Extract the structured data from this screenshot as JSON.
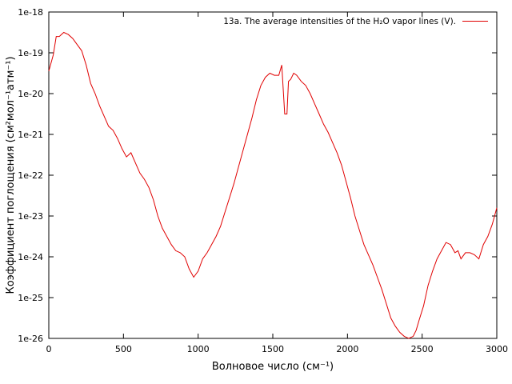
{
  "chart_data": {
    "type": "line",
    "xlabel": "Волновое число (см⁻¹)",
    "ylabel": "Коэффициент поглощения (см²мол⁻¹атм⁻¹)",
    "xlim": [
      0,
      3000
    ],
    "ylim_log10": [
      -26,
      -18
    ],
    "y_scale": "log",
    "x_ticks": [
      0,
      500,
      1000,
      1500,
      2000,
      2500,
      3000
    ],
    "x_tick_labels": [
      "0",
      "500",
      "1000",
      "1500",
      "2000",
      "2500",
      "3000"
    ],
    "y_ticks_log10": [
      -18,
      -19,
      -20,
      -21,
      -22,
      -23,
      -24,
      -25,
      -26
    ],
    "y_tick_labels": [
      "1e-18",
      "1e-19",
      "1e-20",
      "1e-21",
      "1e-22",
      "1e-23",
      "1e-24",
      "1e-25",
      "1e-26"
    ],
    "grid": false,
    "legend_position": "top-right",
    "series": [
      {
        "name": "13a. The average intensities of the H₂O vapor lines (V).",
        "color": "#e00000",
        "x": [
          0,
          30,
          50,
          70,
          100,
          130,
          160,
          190,
          220,
          250,
          280,
          310,
          340,
          370,
          400,
          430,
          460,
          490,
          520,
          550,
          580,
          610,
          640,
          670,
          700,
          730,
          760,
          790,
          820,
          850,
          880,
          910,
          940,
          970,
          1000,
          1030,
          1060,
          1090,
          1120,
          1150,
          1180,
          1210,
          1240,
          1270,
          1300,
          1330,
          1360,
          1390,
          1420,
          1450,
          1480,
          1510,
          1540,
          1560,
          1580,
          1595,
          1605,
          1620,
          1640,
          1660,
          1690,
          1720,
          1750,
          1780,
          1810,
          1840,
          1870,
          1900,
          1930,
          1960,
          1990,
          2020,
          2050,
          2080,
          2110,
          2140,
          2170,
          2200,
          2230,
          2260,
          2290,
          2320,
          2350,
          2380,
          2410,
          2440,
          2460,
          2480,
          2510,
          2540,
          2570,
          2600,
          2630,
          2660,
          2690,
          2720,
          2740,
          2760,
          2790,
          2820,
          2850,
          2880,
          2910,
          2940,
          2970,
          3000
        ],
        "y_log10": [
          -19.45,
          -19.05,
          -18.6,
          -18.6,
          -18.5,
          -18.55,
          -18.65,
          -18.8,
          -18.95,
          -19.3,
          -19.75,
          -20.0,
          -20.3,
          -20.55,
          -20.8,
          -20.9,
          -21.1,
          -21.35,
          -21.55,
          -21.45,
          -21.7,
          -21.95,
          -22.1,
          -22.3,
          -22.6,
          -23.0,
          -23.3,
          -23.5,
          -23.7,
          -23.85,
          -23.9,
          -24.0,
          -24.3,
          -24.5,
          -24.35,
          -24.05,
          -23.9,
          -23.7,
          -23.5,
          -23.25,
          -22.9,
          -22.55,
          -22.2,
          -21.8,
          -21.4,
          -21.0,
          -20.6,
          -20.15,
          -19.8,
          -19.6,
          -19.5,
          -19.55,
          -19.55,
          -19.3,
          -20.5,
          -20.5,
          -19.7,
          -19.65,
          -19.5,
          -19.55,
          -19.7,
          -19.8,
          -20.0,
          -20.25,
          -20.5,
          -20.75,
          -20.95,
          -21.2,
          -21.45,
          -21.75,
          -22.15,
          -22.55,
          -23.0,
          -23.35,
          -23.7,
          -23.95,
          -24.2,
          -24.5,
          -24.8,
          -25.15,
          -25.5,
          -25.7,
          -25.85,
          -25.95,
          -26.0,
          -25.95,
          -25.8,
          -25.55,
          -25.2,
          -24.7,
          -24.35,
          -24.05,
          -23.85,
          -23.65,
          -23.7,
          -23.9,
          -23.85,
          -24.05,
          -23.9,
          -23.9,
          -23.95,
          -24.05,
          -23.7,
          -23.5,
          -23.2,
          -22.8
        ]
      }
    ]
  }
}
